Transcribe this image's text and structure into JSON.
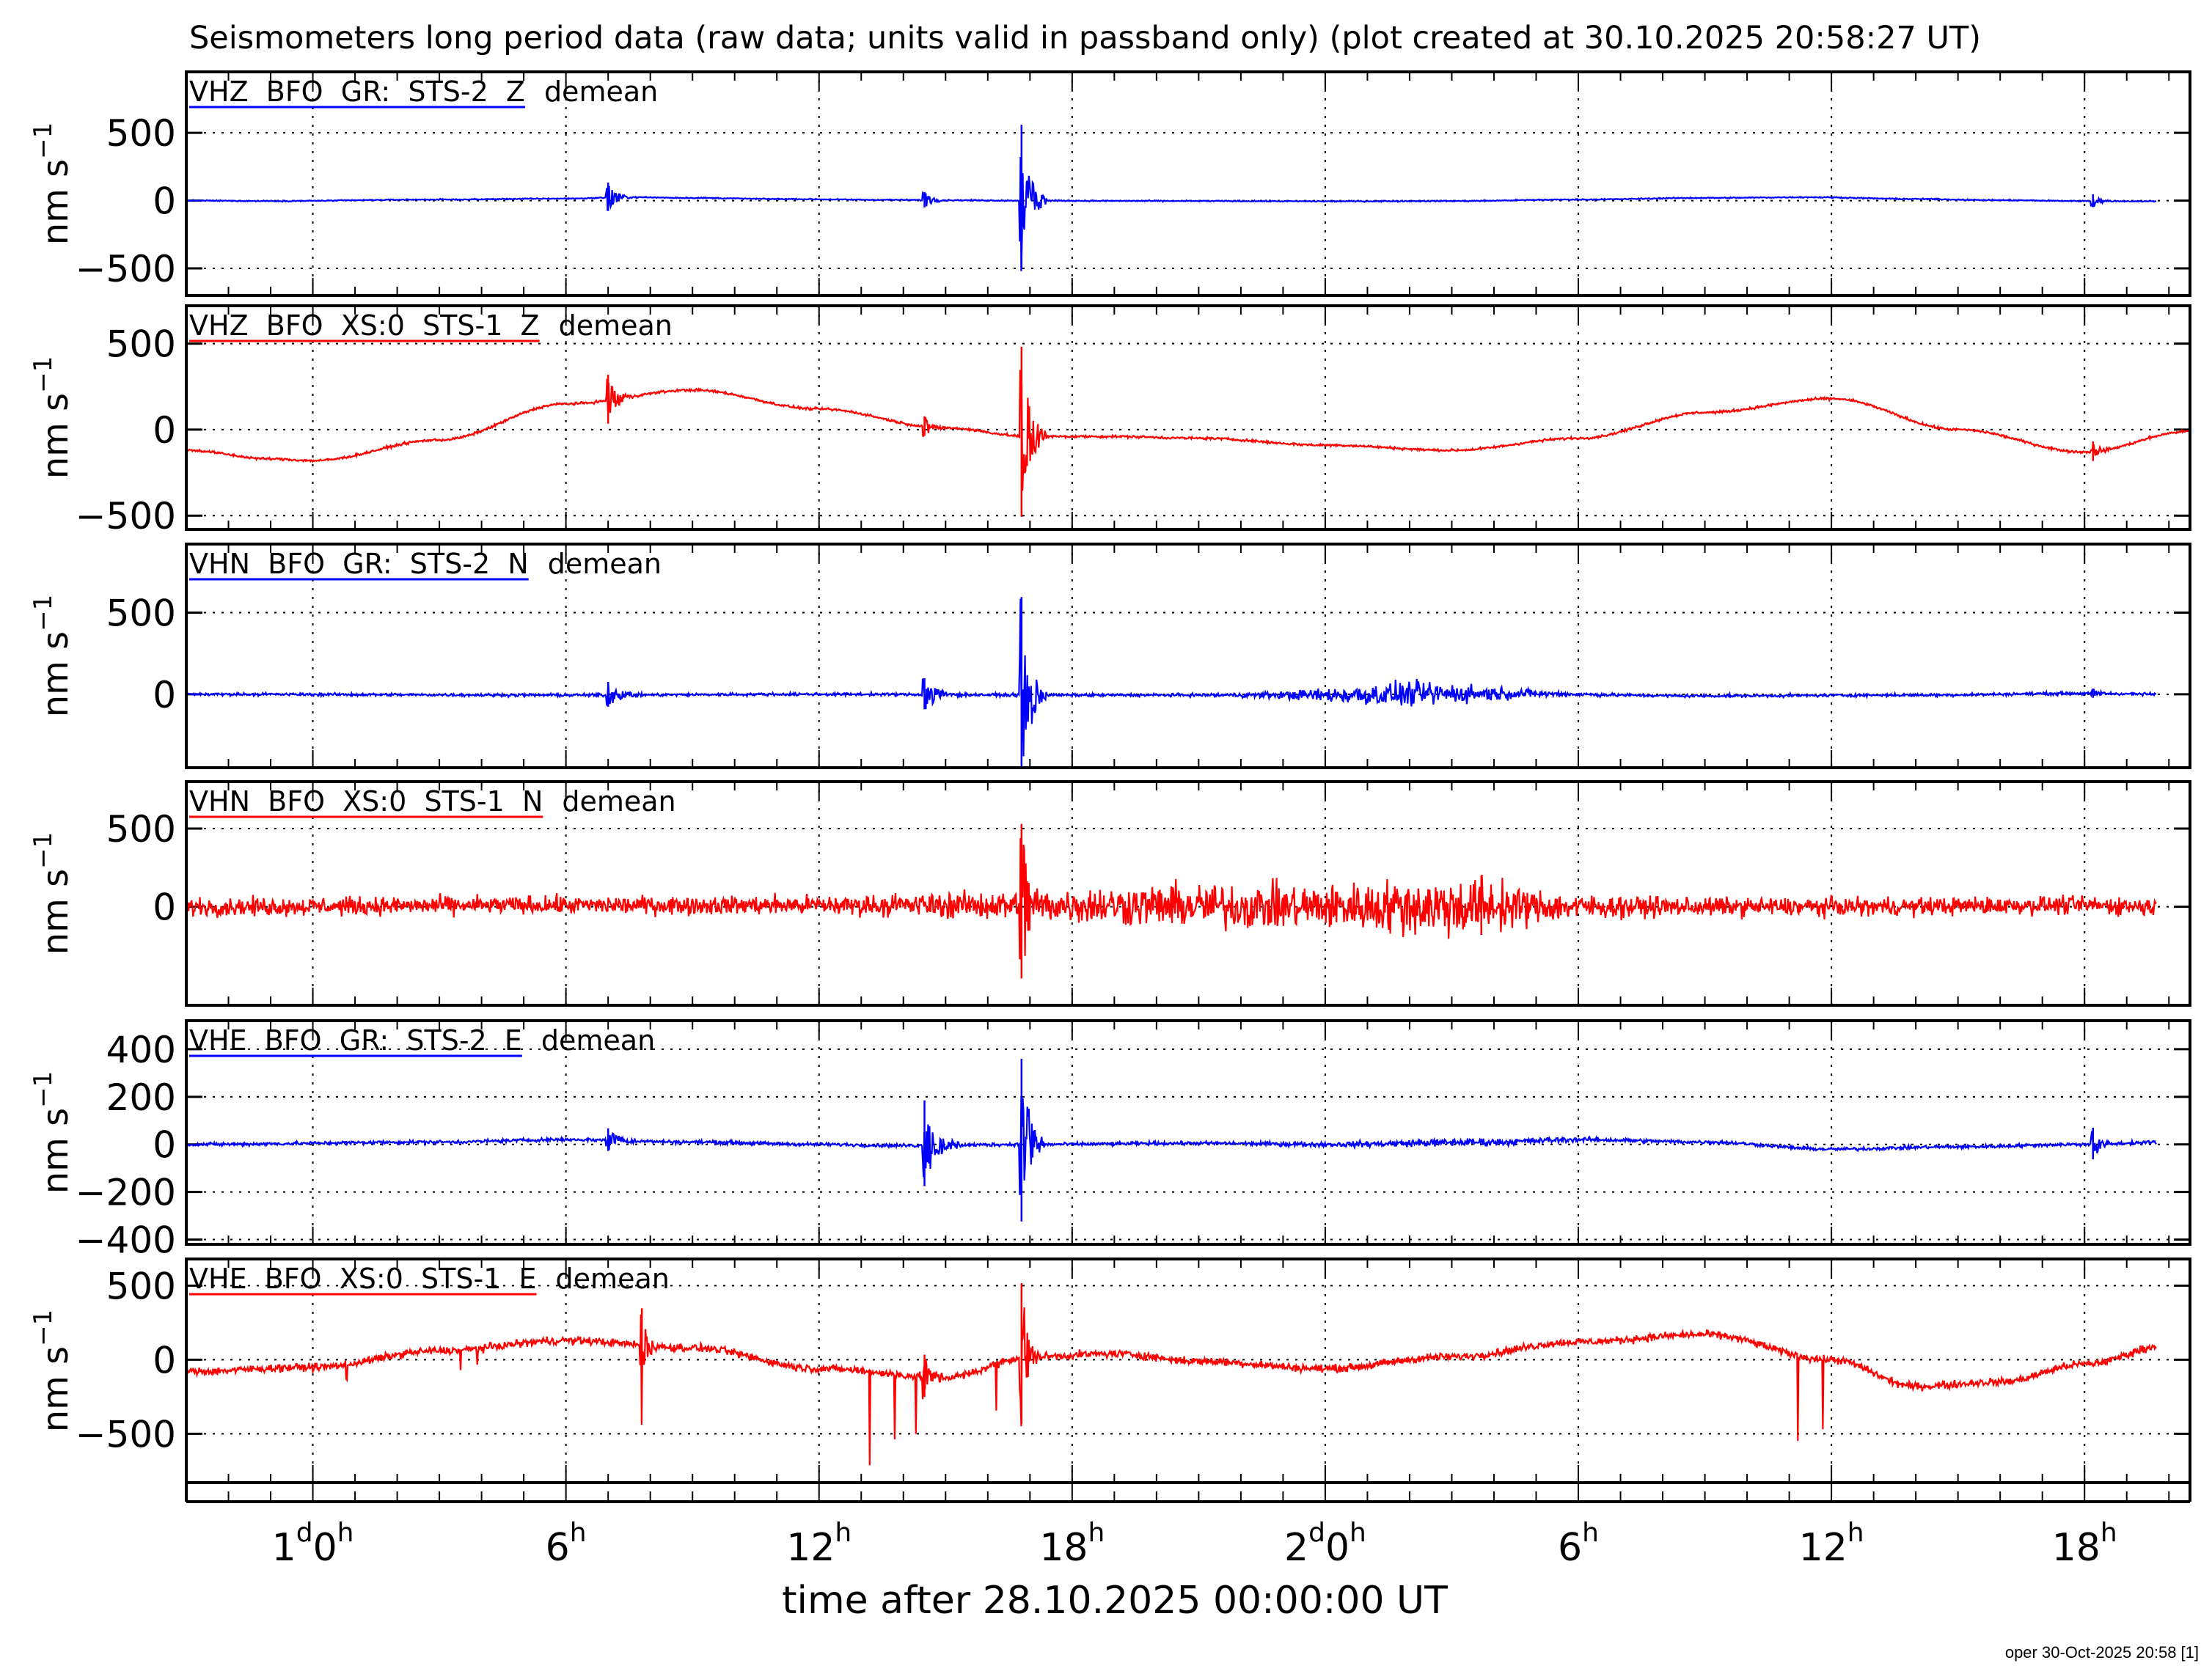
{
  "chart_data": {
    "type": "line",
    "title": "Seismometers long period data (raw data; units valid in passband only) (plot created at 30.10.2025 20:58:27 UT)",
    "xlabel": "time after 28.10.2025 00:00:00 UT",
    "x_unit": "hours",
    "xlim": [
      -3,
      44.5
    ],
    "x_ticks": [
      {
        "x": 0,
        "text": "1",
        "sup1": "d",
        "text2": "0",
        "sup2": "h"
      },
      {
        "x": 6,
        "text": "6",
        "sup1": "h"
      },
      {
        "x": 12,
        "text": "12",
        "sup1": "h"
      },
      {
        "x": 18,
        "text": "18",
        "sup1": "h"
      },
      {
        "x": 24,
        "text": "2",
        "sup1": "d",
        "text2": "0",
        "sup2": "h"
      },
      {
        "x": 30,
        "text": "6",
        "sup1": "h"
      },
      {
        "x": 36,
        "text": "12",
        "sup1": "h"
      },
      {
        "x": 42,
        "text": "18",
        "sup1": "h"
      }
    ],
    "channels": [
      {
        "name": "VHZ  BFO  GR:  STS-2  Z",
        "processing": "demean",
        "color": "#0000ff",
        "ylabel": "nm s",
        "ylabel_sup": "-1",
        "ylim": [
          -700,
          950
        ],
        "yticks": [
          -500,
          0,
          500
        ],
        "x": [
          -3,
          -1,
          3,
          6,
          7.5,
          9,
          11,
          13.5,
          15,
          17,
          19,
          21,
          24,
          27,
          30,
          33,
          35.5,
          38,
          40,
          42,
          43.5
        ],
        "y": [
          0,
          -3,
          8,
          15,
          25,
          20,
          12,
          6,
          3,
          0,
          -2,
          -3,
          -5,
          -3,
          8,
          20,
          25,
          12,
          3,
          -3,
          -5
        ],
        "noise": 3,
        "events": [
          {
            "x": 7,
            "amp": 110,
            "dur": 0.2
          },
          {
            "x": 14.5,
            "amp": 60,
            "dur": 0.2
          },
          {
            "x": 16.8,
            "amp": 560,
            "dur": 0.2
          },
          {
            "x": 42.2,
            "amp": 50,
            "dur": 0.15
          }
        ]
      },
      {
        "name": "VHZ  BFO  XS:0  STS-1  Z",
        "processing": "demean",
        "color": "#ff0000",
        "ylabel": "nm s",
        "ylabel_sup": "-1",
        "ylim": [
          -580,
          720
        ],
        "yticks": [
          -500,
          0,
          500
        ],
        "x": [
          -3,
          -1,
          0,
          3,
          6,
          9,
          12,
          15,
          17,
          19,
          21,
          24,
          27,
          30,
          33,
          36,
          39,
          42,
          44.5
        ],
        "y": [
          -120,
          -170,
          -180,
          -60,
          150,
          230,
          120,
          10,
          -40,
          -40,
          -50,
          -90,
          -120,
          -50,
          100,
          180,
          0,
          -130,
          -10
        ],
        "noise": 5,
        "events": [
          {
            "x": 7,
            "amp": 150,
            "dur": 0.2
          },
          {
            "x": 14.5,
            "amp": 60,
            "dur": 0.2
          },
          {
            "x": 16.8,
            "amp": 520,
            "dur": 0.2
          },
          {
            "x": 42.2,
            "amp": 60,
            "dur": 0.15
          }
        ]
      },
      {
        "name": "VHN  BFO  GR:  STS-2  N",
        "processing": "demean",
        "color": "#0000ff",
        "ylabel": "nm s",
        "ylabel_sup": "-1",
        "ylim": [
          -450,
          920
        ],
        "yticks": [
          0,
          500
        ],
        "x": [
          -3,
          6,
          12,
          18,
          24,
          28,
          33,
          38,
          42,
          44
        ],
        "y": [
          0,
          -5,
          0,
          -5,
          -5,
          5,
          -10,
          -5,
          5,
          0
        ],
        "noise": 6,
        "noise_bumps": [
          {
            "x": 26,
            "amp": 45,
            "w": 5
          }
        ],
        "events": [
          {
            "x": 7,
            "amp": 80,
            "dur": 0.3
          },
          {
            "x": 14.5,
            "amp": 100,
            "dur": 0.3
          },
          {
            "x": 16.8,
            "amp": 600,
            "dur": 0.2
          },
          {
            "x": 42.2,
            "amp": 30,
            "dur": 0.15
          }
        ]
      },
      {
        "name": "VHN  BFO  XS:0  STS-1  N",
        "processing": "demean",
        "color": "#ff0000",
        "ylabel": "nm s",
        "ylabel_sup": "-1",
        "ylim": [
          -630,
          800
        ],
        "yticks": [
          0,
          500
        ],
        "x": [
          -3,
          6,
          12,
          18,
          24,
          30,
          36,
          42,
          44
        ],
        "y": [
          0,
          10,
          10,
          10,
          0,
          0,
          0,
          10,
          0
        ],
        "noise": 40,
        "noise_bumps": [
          {
            "x": 22,
            "amp": 60,
            "w": 12
          },
          {
            "x": 27,
            "amp": 60,
            "w": 4
          }
        ],
        "events": [
          {
            "x": 16.8,
            "amp": 520,
            "dur": 0.15
          },
          {
            "x": 27.7,
            "amp": 200,
            "dur": 0.1
          }
        ]
      },
      {
        "name": "VHE  BFO  GR:  STS-2  E",
        "processing": "demean",
        "color": "#0000ff",
        "ylabel": "nm s",
        "ylabel_sup": "-1",
        "ylim": [
          -420,
          520
        ],
        "yticks": [
          -400,
          -200,
          0,
          200,
          400
        ],
        "x": [
          -3,
          3,
          6,
          9,
          12,
          14,
          17,
          21,
          24,
          28,
          30,
          33,
          36,
          39,
          42,
          44
        ],
        "y": [
          0,
          10,
          20,
          10,
          0,
          -5,
          0,
          5,
          0,
          10,
          20,
          10,
          -20,
          -10,
          0,
          10
        ],
        "noise": 5,
        "noise_bumps": [
          {
            "x": 27,
            "amp": 6,
            "w": 6
          }
        ],
        "events": [
          {
            "x": 7,
            "amp": 50,
            "dur": 0.3
          },
          {
            "x": 14.5,
            "amp": 190,
            "dur": 0.3
          },
          {
            "x": 16.8,
            "amp": 360,
            "dur": 0.2
          },
          {
            "x": 42.2,
            "amp": 70,
            "dur": 0.15
          }
        ]
      },
      {
        "name": "VHE  BFO  XS:0  STS-1  E",
        "processing": "demean",
        "color": "#ff0000",
        "ylabel": "nm s",
        "ylabel_sup": "-1",
        "ylim": [
          -830,
          680
        ],
        "yticks": [
          -500,
          0,
          500
        ],
        "x": [
          -3,
          0,
          3,
          6,
          9,
          12,
          15,
          17,
          19,
          21,
          24,
          27,
          30,
          33,
          36,
          38,
          40,
          42,
          44
        ],
        "y": [
          -80,
          -50,
          60,
          130,
          80,
          -60,
          -120,
          20,
          40,
          -10,
          -60,
          20,
          120,
          170,
          0,
          -180,
          -150,
          -30,
          100
        ],
        "noise": 18,
        "events": [
          {
            "x": 7.8,
            "amp": 250,
            "dur": 0.15
          },
          {
            "x": 14.5,
            "amp": 150,
            "dur": 0.2
          },
          {
            "x": 16.8,
            "amp": 500,
            "dur": 0.15
          }
        ],
        "spikes": [
          {
            "x": 0.8,
            "amp": -120
          },
          {
            "x": 3.5,
            "amp": -140
          },
          {
            "x": 3.9,
            "amp": -110
          },
          {
            "x": 7.8,
            "amp": -400
          },
          {
            "x": 13.2,
            "amp": -620
          },
          {
            "x": 13.8,
            "amp": -450
          },
          {
            "x": 14.3,
            "amp": -380
          },
          {
            "x": 16.2,
            "amp": -300
          },
          {
            "x": 35.2,
            "amp": -580
          },
          {
            "x": 35.8,
            "amp": -480
          }
        ]
      }
    ]
  },
  "footer": "oper 30-Oct-2025 20:58 [1]"
}
